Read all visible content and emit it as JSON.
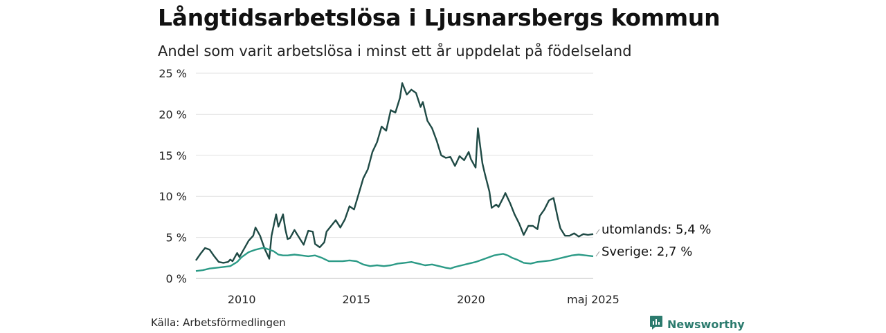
{
  "chart_data": {
    "type": "line",
    "title": "Långtidsarbetslösa i Ljusnarsbergs kommun",
    "subtitle": "Andel som varit arbetslösa i minst ett år uppdelat på födelseland",
    "xlim": [
      "2008-01",
      "2025-05"
    ],
    "ylim": [
      0,
      25
    ],
    "y_ticks": [
      "0 %",
      "5 %",
      "10 %",
      "15 %",
      "20 %",
      "25 %"
    ],
    "y_tick_values": [
      0,
      5,
      10,
      15,
      20,
      25
    ],
    "x_ticks": [
      "2010",
      "2015",
      "2020",
      "maj 2025"
    ],
    "x_tick_values": [
      2010.0,
      2015.0,
      2020.0,
      2025.33
    ],
    "grid": true,
    "series": [
      {
        "name": "utomlands",
        "end_label": "utomlands: 5,4 %",
        "color": "#1f4a45",
        "x": [
          2008.0,
          2008.2,
          2008.4,
          2008.6,
          2008.8,
          2009.0,
          2009.2,
          2009.4,
          2009.5,
          2009.6,
          2009.8,
          2009.9,
          2010.0,
          2010.1,
          2010.3,
          2010.5,
          2010.6,
          2010.8,
          2011.0,
          2011.2,
          2011.3,
          2011.5,
          2011.6,
          2011.8,
          2011.9,
          2012.0,
          2012.1,
          2012.3,
          2012.5,
          2012.7,
          2012.9,
          2013.1,
          2013.2,
          2013.4,
          2013.6,
          2013.7,
          2013.9,
          2014.1,
          2014.3,
          2014.5,
          2014.7,
          2014.9,
          2015.1,
          2015.3,
          2015.5,
          2015.7,
          2015.9,
          2016.1,
          2016.3,
          2016.5,
          2016.7,
          2016.9,
          2017.0,
          2017.2,
          2017.4,
          2017.6,
          2017.8,
          2017.9,
          2018.1,
          2018.3,
          2018.5,
          2018.7,
          2018.9,
          2019.1,
          2019.3,
          2019.5,
          2019.7,
          2019.9,
          2020.0,
          2020.2,
          2020.3,
          2020.5,
          2020.6,
          2020.8,
          2020.9,
          2021.1,
          2021.2,
          2021.4,
          2021.5,
          2021.7,
          2021.9,
          2022.1,
          2022.3,
          2022.5,
          2022.7,
          2022.9,
          2023.0,
          2023.2,
          2023.4,
          2023.6,
          2023.8,
          2023.9,
          2024.1,
          2024.3,
          2024.5,
          2024.7,
          2024.9,
          2025.1,
          2025.33
        ],
        "values": [
          2.2,
          3.0,
          3.7,
          3.5,
          2.7,
          2.0,
          1.9,
          2.0,
          2.3,
          2.1,
          3.1,
          2.6,
          3.1,
          3.6,
          4.6,
          5.2,
          6.2,
          5.2,
          3.6,
          2.4,
          5.2,
          7.8,
          6.3,
          7.8,
          6.0,
          4.8,
          4.9,
          5.9,
          5.0,
          4.1,
          5.8,
          5.7,
          4.2,
          3.8,
          4.4,
          5.7,
          6.4,
          7.1,
          6.2,
          7.2,
          8.8,
          8.4,
          10.3,
          12.2,
          13.3,
          15.4,
          16.6,
          18.5,
          18.0,
          20.5,
          20.2,
          22.0,
          23.8,
          22.4,
          23.0,
          22.6,
          20.9,
          21.5,
          19.2,
          18.3,
          16.8,
          15.0,
          14.7,
          14.8,
          13.7,
          14.9,
          14.4,
          15.4,
          14.5,
          13.5,
          18.3,
          14.0,
          12.8,
          10.6,
          8.6,
          9.0,
          8.7,
          9.8,
          10.4,
          9.2,
          7.8,
          6.7,
          5.3,
          6.4,
          6.4,
          6.0,
          7.6,
          8.4,
          9.5,
          9.8,
          7.2,
          6.1,
          5.2,
          5.2,
          5.5,
          5.1,
          5.4,
          5.3,
          5.4
        ]
      },
      {
        "name": "Sverige",
        "end_label": "Sverige: 2,7 %",
        "color": "#2b9a86",
        "x": [
          2008.0,
          2008.3,
          2008.6,
          2008.9,
          2009.2,
          2009.5,
          2009.8,
          2010.0,
          2010.3,
          2010.6,
          2010.9,
          2011.0,
          2011.2,
          2011.4,
          2011.6,
          2011.8,
          2012.0,
          2012.3,
          2012.6,
          2012.9,
          2013.2,
          2013.5,
          2013.8,
          2014.1,
          2014.4,
          2014.7,
          2015.0,
          2015.3,
          2015.6,
          2015.9,
          2016.2,
          2016.5,
          2016.8,
          2017.1,
          2017.4,
          2017.7,
          2018.0,
          2018.3,
          2018.6,
          2018.9,
          2019.1,
          2019.3,
          2019.6,
          2019.9,
          2020.2,
          2020.5,
          2020.8,
          2021.0,
          2021.2,
          2021.4,
          2021.6,
          2021.8,
          2022.0,
          2022.3,
          2022.6,
          2022.9,
          2023.2,
          2023.5,
          2023.8,
          2024.1,
          2024.4,
          2024.7,
          2025.0,
          2025.33
        ],
        "values": [
          0.9,
          1.0,
          1.2,
          1.3,
          1.4,
          1.5,
          2.0,
          2.6,
          3.2,
          3.5,
          3.7,
          3.7,
          3.5,
          3.3,
          2.9,
          2.8,
          2.8,
          2.9,
          2.8,
          2.7,
          2.8,
          2.5,
          2.1,
          2.1,
          2.1,
          2.2,
          2.1,
          1.7,
          1.5,
          1.6,
          1.5,
          1.6,
          1.8,
          1.9,
          2.0,
          1.8,
          1.6,
          1.7,
          1.5,
          1.3,
          1.2,
          1.4,
          1.6,
          1.8,
          2.0,
          2.3,
          2.6,
          2.8,
          2.9,
          3.0,
          2.8,
          2.5,
          2.3,
          1.9,
          1.8,
          2.0,
          2.1,
          2.2,
          2.4,
          2.6,
          2.8,
          2.9,
          2.8,
          2.7
        ]
      }
    ]
  },
  "source": "Källa: Arbetsförmedlingen",
  "brand": {
    "name": "Newsworthy",
    "icon": "newsworthy-logo-icon",
    "color": "#2c7b6e"
  }
}
